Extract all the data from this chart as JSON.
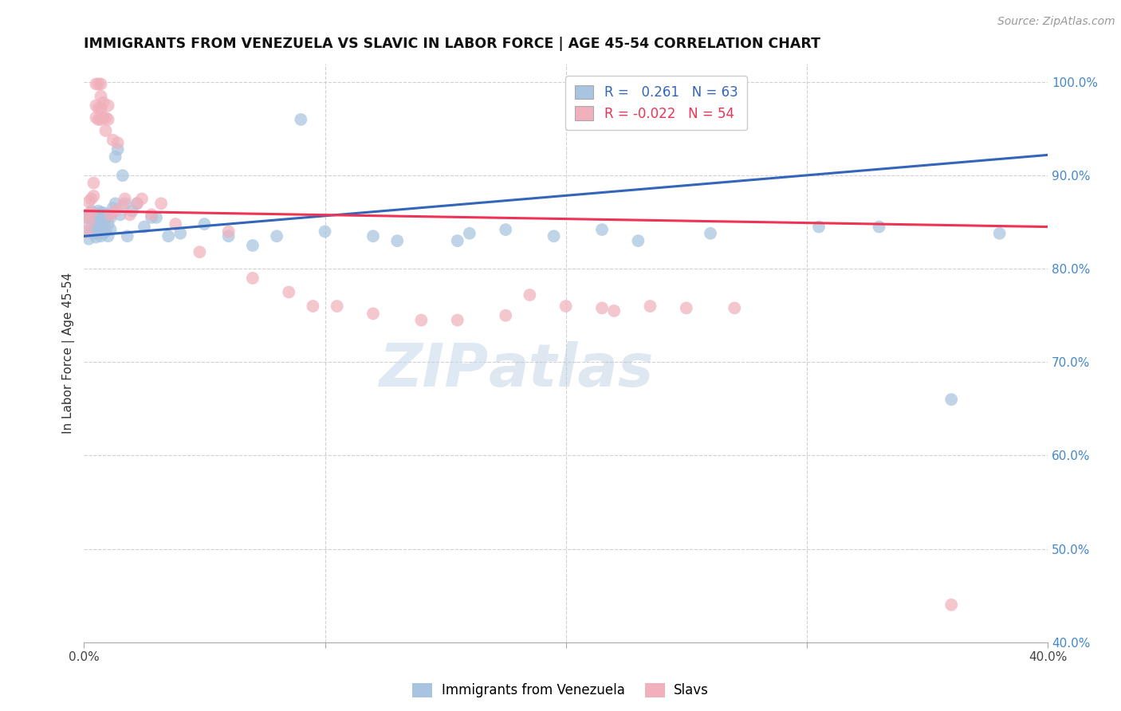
{
  "title": "IMMIGRANTS FROM VENEZUELA VS SLAVIC IN LABOR FORCE | AGE 45-54 CORRELATION CHART",
  "source": "Source: ZipAtlas.com",
  "ylabel": "In Labor Force | Age 45-54",
  "xlim": [
    0.0,
    0.4
  ],
  "ylim": [
    0.4,
    1.02
  ],
  "yticks_right": [
    0.4,
    0.5,
    0.6,
    0.7,
    0.8,
    0.9,
    1.0
  ],
  "yticklabels_right": [
    "40.0%",
    "50.0%",
    "60.0%",
    "70.0%",
    "80.0%",
    "90.0%",
    "100.0%"
  ],
  "blue_color": "#a8c4e0",
  "pink_color": "#f0b0bc",
  "blue_line_color": "#3366bb",
  "pink_line_color": "#ee3355",
  "watermark_zip": "ZIP",
  "watermark_atlas": "atlas",
  "blue_scatter_x": [
    0.001,
    0.001,
    0.002,
    0.002,
    0.003,
    0.003,
    0.003,
    0.004,
    0.004,
    0.004,
    0.005,
    0.005,
    0.005,
    0.006,
    0.006,
    0.006,
    0.007,
    0.007,
    0.007,
    0.008,
    0.008,
    0.008,
    0.009,
    0.009,
    0.01,
    0.01,
    0.01,
    0.011,
    0.011,
    0.012,
    0.013,
    0.013,
    0.014,
    0.015,
    0.016,
    0.017,
    0.018,
    0.02,
    0.022,
    0.025,
    0.028,
    0.03,
    0.035,
    0.04,
    0.05,
    0.06,
    0.07,
    0.08,
    0.09,
    0.1,
    0.12,
    0.13,
    0.155,
    0.16,
    0.175,
    0.195,
    0.215,
    0.23,
    0.26,
    0.305,
    0.33,
    0.36,
    0.38
  ],
  "blue_scatter_y": [
    0.84,
    0.855,
    0.832,
    0.858,
    0.84,
    0.852,
    0.862,
    0.838,
    0.848,
    0.858,
    0.834,
    0.845,
    0.858,
    0.838,
    0.85,
    0.862,
    0.835,
    0.848,
    0.86,
    0.838,
    0.85,
    0.86,
    0.84,
    0.855,
    0.835,
    0.848,
    0.858,
    0.842,
    0.855,
    0.865,
    0.92,
    0.87,
    0.928,
    0.858,
    0.9,
    0.87,
    0.835,
    0.862,
    0.87,
    0.845,
    0.855,
    0.855,
    0.835,
    0.838,
    0.848,
    0.835,
    0.825,
    0.835,
    0.96,
    0.84,
    0.835,
    0.83,
    0.83,
    0.838,
    0.842,
    0.835,
    0.842,
    0.83,
    0.838,
    0.845,
    0.845,
    0.66,
    0.838
  ],
  "pink_scatter_x": [
    0.001,
    0.001,
    0.002,
    0.002,
    0.003,
    0.003,
    0.004,
    0.004,
    0.005,
    0.005,
    0.005,
    0.006,
    0.006,
    0.006,
    0.007,
    0.007,
    0.007,
    0.007,
    0.008,
    0.008,
    0.009,
    0.009,
    0.01,
    0.01,
    0.011,
    0.012,
    0.013,
    0.014,
    0.016,
    0.017,
    0.019,
    0.022,
    0.024,
    0.028,
    0.032,
    0.038,
    0.048,
    0.06,
    0.07,
    0.085,
    0.095,
    0.105,
    0.12,
    0.14,
    0.155,
    0.175,
    0.185,
    0.2,
    0.215,
    0.22,
    0.235,
    0.25,
    0.27,
    0.36
  ],
  "pink_scatter_y": [
    0.84,
    0.858,
    0.85,
    0.872,
    0.86,
    0.875,
    0.878,
    0.892,
    0.962,
    0.975,
    0.998,
    0.96,
    0.972,
    0.998,
    0.96,
    0.972,
    0.985,
    0.998,
    0.962,
    0.978,
    0.948,
    0.962,
    0.96,
    0.975,
    0.858,
    0.938,
    0.862,
    0.935,
    0.868,
    0.875,
    0.858,
    0.87,
    0.875,
    0.858,
    0.87,
    0.848,
    0.818,
    0.84,
    0.79,
    0.775,
    0.76,
    0.76,
    0.752,
    0.745,
    0.745,
    0.75,
    0.772,
    0.76,
    0.758,
    0.755,
    0.76,
    0.758,
    0.758,
    0.44
  ]
}
